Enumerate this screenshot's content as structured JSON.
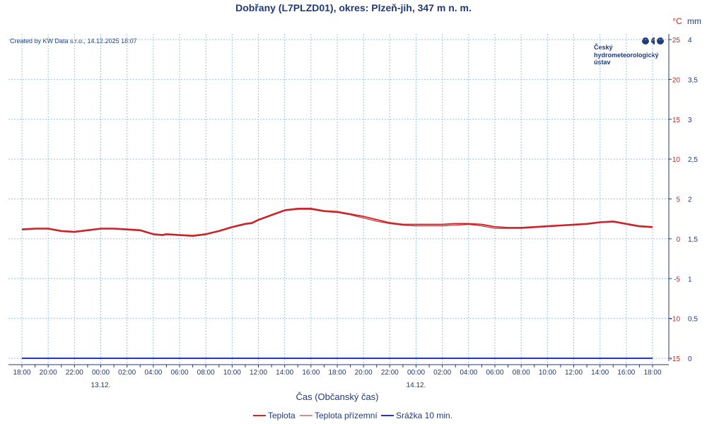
{
  "title": "Dobřany (L7PLZD01), okres: Plzeň-jih, 347 m n. m.",
  "credit": "Created by KW Data s.r.o., 14.12.2025 18:07",
  "logo": {
    "line1": "Český",
    "line2": "hydrometeorologický",
    "line3": "ústav"
  },
  "colors": {
    "temp": "#dd2222",
    "ground_temp": "#aa2233",
    "precip": "#2233dd",
    "text": "#1f3a7a",
    "grid": "#99c4de"
  },
  "chart_data": {
    "type": "line",
    "xlabel": "Čas (Občanský čas)",
    "x_range_hours": [
      0,
      48
    ],
    "x_ticks": [
      "18:00",
      "20:00",
      "22:00",
      "00:00",
      "02:00",
      "04:00",
      "06:00",
      "08:00",
      "10:00",
      "12:00",
      "14:00",
      "16:00",
      "18:00",
      "20:00",
      "22:00",
      "00:00",
      "02:00",
      "04:00",
      "06:00",
      "08:00",
      "10:00",
      "12:00",
      "14:00",
      "16:00",
      "18:00"
    ],
    "date_labels": [
      {
        "hour": 6,
        "text": "13.12."
      },
      {
        "hour": 30,
        "text": "14.12."
      }
    ],
    "y_left": {
      "unit": "°C",
      "range": [
        -15,
        25
      ],
      "ticks": [
        "25",
        "20",
        "15",
        "10",
        "5",
        "0",
        "-5",
        "-10",
        "-15"
      ]
    },
    "y_right": {
      "unit": "mm",
      "range": [
        0,
        4
      ],
      "ticks": [
        "4",
        "3,5",
        "3",
        "2,5",
        "2",
        "1,5",
        "1",
        "0,5",
        "0"
      ]
    },
    "series": [
      {
        "name": "Teplota",
        "axis": "left",
        "x": [
          0,
          1,
          2,
          3,
          4,
          5,
          6,
          7,
          8,
          9,
          10,
          10.7,
          11,
          12,
          13,
          14,
          15,
          16,
          17,
          17.5,
          18,
          19,
          20,
          21,
          22,
          23,
          24,
          25,
          26,
          27,
          28,
          29,
          30,
          31,
          32,
          33,
          34,
          35,
          36,
          37,
          38,
          39,
          40,
          41,
          42,
          43,
          44,
          45,
          46,
          47,
          48
        ],
        "values": [
          1.2,
          1.3,
          1.3,
          1.0,
          0.9,
          1.1,
          1.3,
          1.3,
          1.2,
          1.1,
          0.6,
          0.5,
          0.6,
          0.5,
          0.4,
          0.6,
          1.0,
          1.5,
          1.9,
          2.0,
          2.4,
          3.0,
          3.6,
          3.8,
          3.8,
          3.5,
          3.4,
          3.1,
          2.8,
          2.4,
          2.0,
          1.8,
          1.8,
          1.8,
          1.8,
          1.9,
          1.9,
          1.8,
          1.5,
          1.4,
          1.4,
          1.5,
          1.6,
          1.7,
          1.8,
          1.9,
          2.1,
          2.2,
          1.9,
          1.6,
          1.5
        ]
      },
      {
        "name": "Teplota přízemní",
        "axis": "left",
        "x": [
          0,
          1,
          2,
          3,
          4,
          5,
          6,
          7,
          8,
          9,
          10,
          10.7,
          11,
          12,
          13,
          14,
          15,
          16,
          17,
          17.5,
          18,
          19,
          20,
          21,
          22,
          23,
          24,
          25,
          26,
          27,
          28,
          29,
          30,
          31,
          32,
          33,
          34,
          35,
          36,
          37,
          38,
          39,
          40,
          41,
          42,
          43,
          44,
          45,
          46,
          47,
          48
        ],
        "values": [
          1.1,
          1.2,
          1.2,
          0.9,
          0.8,
          1.0,
          1.2,
          1.2,
          1.1,
          1.0,
          0.5,
          0.4,
          0.5,
          0.4,
          0.3,
          0.5,
          0.9,
          1.4,
          1.8,
          1.9,
          2.3,
          2.9,
          3.5,
          3.7,
          3.7,
          3.4,
          3.3,
          3.0,
          2.6,
          2.2,
          1.9,
          1.7,
          1.6,
          1.6,
          1.6,
          1.7,
          1.8,
          1.6,
          1.3,
          1.3,
          1.3,
          1.4,
          1.5,
          1.6,
          1.7,
          1.8,
          2.0,
          2.1,
          1.8,
          1.5,
          1.4
        ]
      },
      {
        "name": "Srážka 10 min.",
        "axis": "right",
        "x": [
          0,
          48
        ],
        "values": [
          0,
          0
        ]
      }
    ]
  }
}
